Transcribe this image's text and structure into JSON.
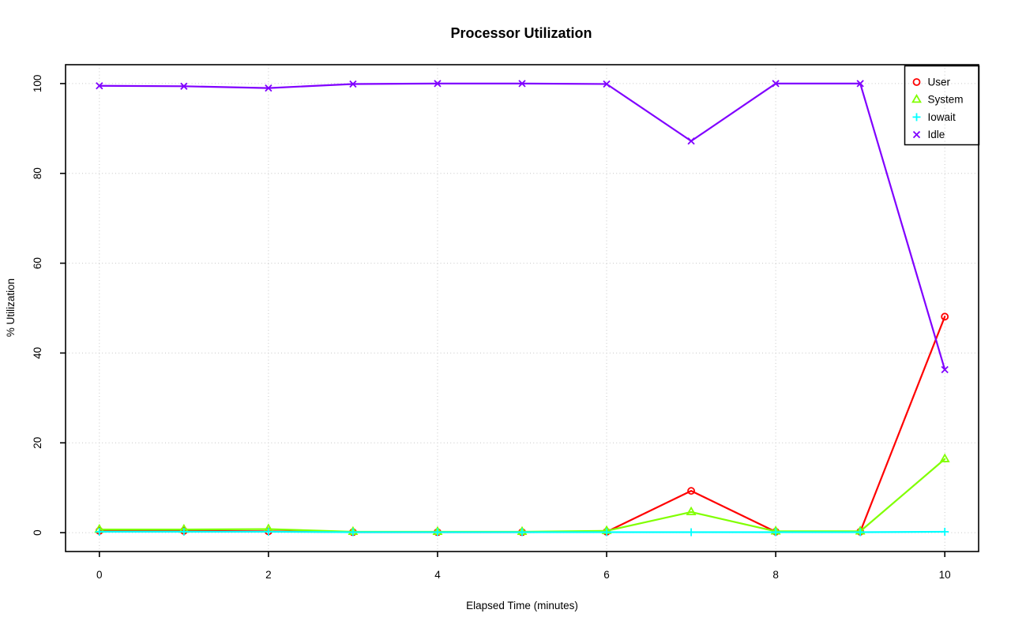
{
  "page": {
    "background": "#ffffff",
    "frame_color": "#000000",
    "text_color": "#000000"
  },
  "chart_data": {
    "type": "line",
    "title": "Processor Utilization",
    "xlabel": "Elapsed Time (minutes)",
    "ylabel": "% Utilization",
    "grid": "dotted",
    "grid_color": "#c6c6c6",
    "legend_position": "top-right",
    "xlim": [
      -0.4,
      10.4
    ],
    "ylim": [
      -4.2,
      104.2
    ],
    "x_ticks": [
      0,
      2,
      4,
      6,
      8,
      10
    ],
    "y_ticks": [
      0,
      20,
      40,
      60,
      80,
      100
    ],
    "x": [
      0,
      1,
      2,
      3,
      4,
      5,
      6,
      7,
      8,
      9,
      10
    ],
    "series": [
      {
        "name": "User",
        "color": "#ff0000",
        "marker": "circle",
        "values": [
          0.4,
          0.4,
          0.3,
          0.1,
          0.1,
          0.1,
          0.2,
          9.3,
          0.2,
          0.2,
          48.1
        ]
      },
      {
        "name": "System",
        "color": "#80ff00",
        "marker": "triangle",
        "values": [
          0.7,
          0.7,
          0.8,
          0.2,
          0.2,
          0.2,
          0.4,
          4.6,
          0.3,
          0.3,
          16.4
        ]
      },
      {
        "name": "Iowait",
        "color": "#00ffff",
        "marker": "plus",
        "values": [
          0.2,
          0.2,
          0.2,
          0.1,
          0.1,
          0.1,
          0.1,
          0.1,
          0.1,
          0.1,
          0.2
        ]
      },
      {
        "name": "Idle",
        "color": "#8000ff",
        "marker": "x",
        "values": [
          99.5,
          99.4,
          99.0,
          99.9,
          100.0,
          100.0,
          99.9,
          87.2,
          100.0,
          100.0,
          36.3
        ]
      }
    ]
  }
}
